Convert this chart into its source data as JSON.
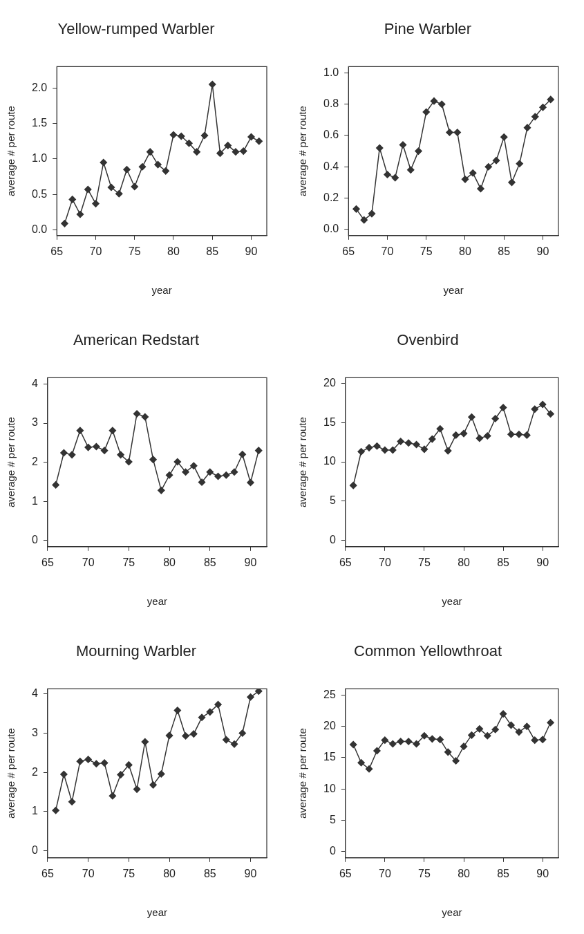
{
  "chart_data": [
    {
      "type": "line",
      "title": "Yellow-rumped Warbler",
      "xlabel": "year",
      "ylabel": "average # per route",
      "color": "#333333",
      "marker": "diamond",
      "x": [
        66,
        67,
        68,
        69,
        70,
        71,
        72,
        73,
        74,
        75,
        76,
        77,
        78,
        79,
        80,
        81,
        82,
        83,
        84,
        85,
        86,
        87,
        88,
        89,
        90,
        91
      ],
      "values": [
        0.09,
        0.43,
        0.22,
        0.57,
        0.37,
        0.95,
        0.6,
        0.51,
        0.85,
        0.61,
        0.89,
        1.1,
        0.92,
        0.83,
        1.34,
        1.32,
        1.22,
        1.1,
        1.33,
        2.05,
        1.08,
        1.19,
        1.1,
        1.11,
        1.31,
        1.25
      ],
      "xlim": [
        65,
        92
      ],
      "xticks": [
        65,
        70,
        75,
        80,
        85,
        90
      ],
      "ylim": [
        -0.08,
        2.3
      ],
      "yticks": [
        {
          "value": 0,
          "label": "0.0"
        },
        {
          "value": 0.5,
          "label": "0.5"
        },
        {
          "value": 1,
          "label": "1.0"
        },
        {
          "value": 1.5,
          "label": "1.5"
        },
        {
          "value": 2,
          "label": "2.0"
        }
      ]
    },
    {
      "type": "line",
      "title": "Pine Warbler",
      "xlabel": "year",
      "ylabel": "average # per route",
      "color": "#333333",
      "marker": "diamond",
      "x": [
        66,
        67,
        68,
        69,
        70,
        71,
        72,
        73,
        74,
        75,
        76,
        77,
        78,
        79,
        80,
        81,
        82,
        83,
        84,
        85,
        86,
        87,
        88,
        89,
        90,
        91
      ],
      "values": [
        0.13,
        0.06,
        0.1,
        0.52,
        0.35,
        0.33,
        0.54,
        0.38,
        0.5,
        0.75,
        0.82,
        0.8,
        0.62,
        0.62,
        0.32,
        0.36,
        0.26,
        0.4,
        0.44,
        0.59,
        0.3,
        0.42,
        0.65,
        0.72,
        0.78,
        0.83
      ],
      "xlim": [
        65,
        92
      ],
      "xticks": [
        65,
        70,
        75,
        80,
        85,
        90
      ],
      "ylim": [
        -0.04,
        1.04
      ],
      "yticks": [
        {
          "value": 0,
          "label": "0.0"
        },
        {
          "value": 0.2,
          "label": "0.2"
        },
        {
          "value": 0.4,
          "label": "0.4"
        },
        {
          "value": 0.6,
          "label": "0.6"
        },
        {
          "value": 0.8,
          "label": "0.8"
        },
        {
          "value": 1,
          "label": "1.0"
        }
      ]
    },
    {
      "type": "line",
      "title": "American Redstart",
      "xlabel": "year",
      "ylabel": "average # per route",
      "color": "#333333",
      "marker": "diamond",
      "x": [
        66,
        67,
        68,
        69,
        70,
        71,
        72,
        73,
        74,
        75,
        76,
        77,
        78,
        79,
        80,
        81,
        82,
        83,
        84,
        85,
        86,
        87,
        88,
        89,
        90,
        91
      ],
      "values": [
        1.42,
        2.24,
        2.19,
        2.81,
        2.38,
        2.4,
        2.3,
        2.81,
        2.19,
        2.01,
        3.24,
        3.16,
        2.07,
        1.28,
        1.67,
        2.01,
        1.75,
        1.91,
        1.49,
        1.75,
        1.64,
        1.67,
        1.75,
        2.2,
        1.48,
        2.3
      ],
      "xlim": [
        65,
        92
      ],
      "xticks": [
        65,
        70,
        75,
        80,
        85,
        90
      ],
      "ylim": [
        -0.16,
        4.16
      ],
      "yticks": [
        0,
        1,
        2,
        3,
        4
      ]
    },
    {
      "type": "line",
      "title": "Ovenbird",
      "xlabel": "year",
      "ylabel": "average # per route",
      "color": "#333333",
      "marker": "diamond",
      "x": [
        66,
        67,
        68,
        69,
        70,
        71,
        72,
        73,
        74,
        75,
        76,
        77,
        78,
        79,
        80,
        81,
        82,
        83,
        84,
        85,
        86,
        87,
        88,
        89,
        90,
        91
      ],
      "values": [
        7.0,
        11.3,
        11.8,
        12.0,
        11.5,
        11.5,
        12.6,
        12.4,
        12.2,
        11.6,
        12.9,
        14.2,
        11.4,
        13.4,
        13.6,
        15.7,
        13.0,
        13.3,
        15.5,
        16.9,
        13.5,
        13.5,
        13.4,
        16.7,
        17.3,
        16.1
      ],
      "xlim": [
        65,
        92
      ],
      "xticks": [
        65,
        70,
        75,
        80,
        85,
        90
      ],
      "ylim": [
        -0.8,
        20.7
      ],
      "yticks": [
        0,
        5,
        10,
        15,
        20
      ]
    },
    {
      "type": "line",
      "title": "Mourning Warbler",
      "xlabel": "year",
      "ylabel": "average # per route",
      "color": "#333333",
      "marker": "diamond",
      "x": [
        66,
        67,
        68,
        69,
        70,
        71,
        72,
        73,
        74,
        75,
        76,
        77,
        78,
        79,
        80,
        81,
        82,
        83,
        84,
        85,
        86,
        87,
        88,
        89,
        90,
        91
      ],
      "values": [
        1.03,
        1.95,
        1.25,
        2.28,
        2.33,
        2.22,
        2.24,
        1.4,
        1.94,
        2.19,
        1.57,
        2.78,
        1.68,
        1.96,
        2.94,
        3.58,
        2.93,
        2.98,
        3.4,
        3.54,
        3.73,
        2.83,
        2.72,
        3.0,
        3.92,
        4.07
      ],
      "xlim": [
        65,
        92
      ],
      "xticks": [
        65,
        70,
        75,
        80,
        85,
        90
      ],
      "ylim": [
        -0.18,
        4.13
      ],
      "yticks": [
        0,
        1,
        2,
        3,
        4
      ]
    },
    {
      "type": "line",
      "title": "Common Yellowthroat",
      "xlabel": "year",
      "ylabel": "average # per route",
      "color": "#333333",
      "marker": "diamond",
      "x": [
        66,
        67,
        68,
        69,
        70,
        71,
        72,
        73,
        74,
        75,
        76,
        77,
        78,
        79,
        80,
        81,
        82,
        83,
        84,
        85,
        86,
        87,
        88,
        89,
        90,
        91
      ],
      "values": [
        17.1,
        14.2,
        13.2,
        16.1,
        17.8,
        17.2,
        17.6,
        17.6,
        17.2,
        18.5,
        18.0,
        17.9,
        15.9,
        14.5,
        16.8,
        18.6,
        19.6,
        18.5,
        19.5,
        22.0,
        20.2,
        19.1,
        20.0,
        17.8,
        17.9,
        20.6
      ],
      "xlim": [
        65,
        92
      ],
      "xticks": [
        65,
        70,
        75,
        80,
        85,
        90
      ],
      "ylim": [
        -1,
        26
      ],
      "yticks": [
        0,
        5,
        10,
        15,
        20,
        25
      ]
    }
  ]
}
